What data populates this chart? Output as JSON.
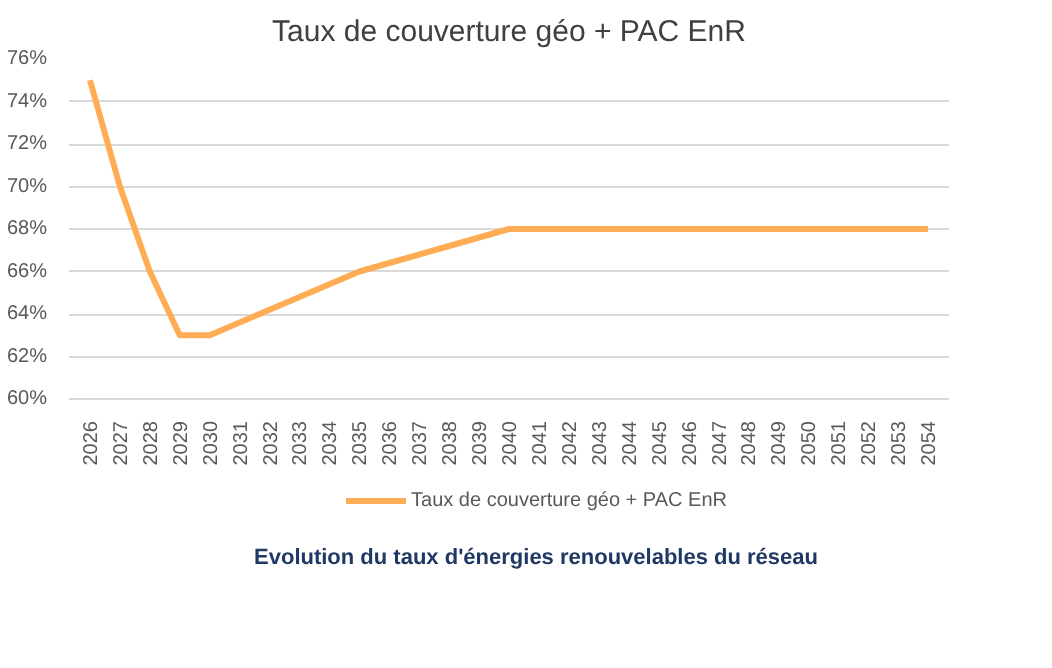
{
  "chart_data": {
    "type": "line",
    "title": "Taux de couverture géo + PAC EnR",
    "categories": [
      "2026",
      "2027",
      "2028",
      "2029",
      "2030",
      "2031",
      "2032",
      "2033",
      "2034",
      "2035",
      "2036",
      "2037",
      "2038",
      "2039",
      "2040",
      "2041",
      "2042",
      "2043",
      "2044",
      "2045",
      "2046",
      "2047",
      "2048",
      "2049",
      "2050",
      "2051",
      "2052",
      "2053",
      "2054"
    ],
    "series": [
      {
        "name": "Taux de couverture géo + PAC EnR",
        "color": "#ffad55",
        "values": [
          75,
          70,
          66,
          63,
          63,
          63.6,
          64.2,
          64.8,
          65.4,
          66,
          66.4,
          66.8,
          67.2,
          67.6,
          68,
          68,
          68,
          68,
          68,
          68,
          68,
          68,
          68,
          68,
          68,
          68,
          68,
          68,
          68
        ]
      }
    ],
    "ylim": [
      60,
      76
    ],
    "yticks": [
      {
        "value": 60,
        "label": "60%"
      },
      {
        "value": 62,
        "label": "62%"
      },
      {
        "value": 64,
        "label": "64%"
      },
      {
        "value": 66,
        "label": "66%"
      },
      {
        "value": 68,
        "label": "68%"
      },
      {
        "value": 70,
        "label": "70%"
      },
      {
        "value": 72,
        "label": "72%"
      },
      {
        "value": 74,
        "label": "74%"
      },
      {
        "value": 76,
        "label": "76%"
      }
    ],
    "grid": "y",
    "legend": "bottom",
    "marker": "none",
    "line_style": "solid",
    "annotations": [
      "Evolution du taux d'énergies renouvelables du réseau"
    ]
  }
}
